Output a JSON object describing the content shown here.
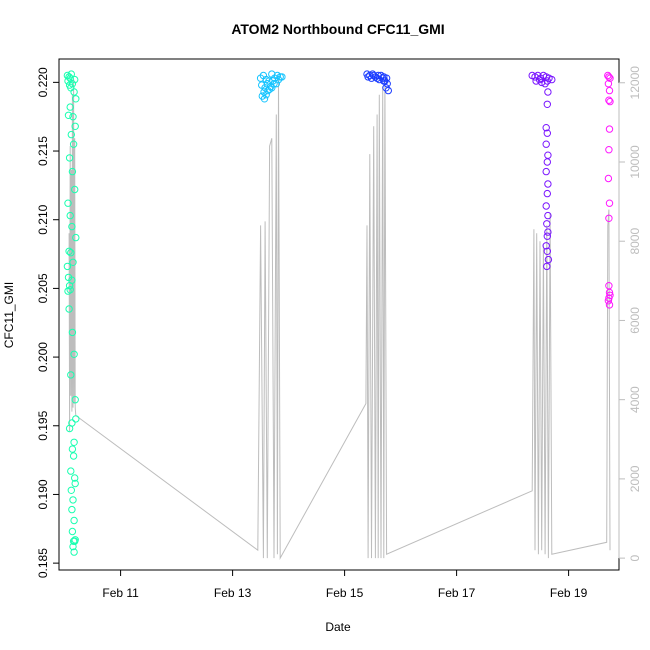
{
  "chart_data": {
    "type": "scatter",
    "title": "ATOM2 Northbound CFC11_GMI",
    "xlabel": "Date",
    "ylabel": "CFC11_GMI",
    "x_ticks": [
      "Feb 11",
      "Feb 13",
      "Feb 15",
      "Feb 17",
      "Feb 19"
    ],
    "x_tick_days": [
      11,
      13,
      15,
      17,
      19
    ],
    "xlim": [
      9.9,
      19.9
    ],
    "ylim": [
      0.1845,
      0.2217
    ],
    "y_ticks": [
      0.185,
      0.19,
      0.195,
      0.2,
      0.205,
      0.21,
      0.215,
      0.22
    ],
    "y_tick_labels": [
      "0.185",
      "0.190",
      "0.195",
      "0.200",
      "0.205",
      "0.210",
      "0.215",
      "0.220"
    ],
    "y2_ticks": [
      0,
      2000,
      4000,
      6000,
      8000,
      10000,
      12000
    ],
    "y2lim": [
      -300,
      12600
    ],
    "y2_color": "#bdbdbd",
    "grid": false,
    "series": [
      {
        "color": "#19ffb0",
        "points": [
          [
            10.05,
            0.2205
          ],
          [
            10.08,
            0.2204
          ],
          [
            10.1,
            0.2203
          ],
          [
            10.12,
            0.2206
          ],
          [
            10.06,
            0.2201
          ],
          [
            10.09,
            0.2198
          ],
          [
            10.14,
            0.2199
          ],
          [
            10.18,
            0.2202
          ],
          [
            10.11,
            0.2196
          ],
          [
            10.17,
            0.2193
          ],
          [
            10.2,
            0.2188
          ],
          [
            10.1,
            0.2182
          ],
          [
            10.15,
            0.2175
          ],
          [
            10.19,
            0.2168
          ],
          [
            10.07,
            0.2176
          ],
          [
            10.12,
            0.2162
          ],
          [
            10.16,
            0.2155
          ],
          [
            10.09,
            0.2145
          ],
          [
            10.14,
            0.2135
          ],
          [
            10.18,
            0.2122
          ],
          [
            10.06,
            0.2112
          ],
          [
            10.1,
            0.2103
          ],
          [
            10.13,
            0.2095
          ],
          [
            10.2,
            0.2087
          ],
          [
            10.08,
            0.2077
          ],
          [
            10.11,
            0.2076
          ],
          [
            10.05,
            0.2066
          ],
          [
            10.07,
            0.2058
          ],
          [
            10.09,
            0.2052
          ],
          [
            10.06,
            0.2048
          ],
          [
            10.1,
            0.2049
          ],
          [
            10.13,
            0.2056
          ],
          [
            10.15,
            0.2069
          ],
          [
            10.08,
            0.2035
          ],
          [
            10.14,
            0.2018
          ],
          [
            10.17,
            0.2002
          ],
          [
            10.11,
            0.1987
          ],
          [
            10.19,
            0.1969
          ],
          [
            10.13,
            0.1952
          ],
          [
            10.17,
            0.1938
          ],
          [
            10.2,
            0.1955
          ],
          [
            10.09,
            0.1948
          ],
          [
            10.14,
            0.1933
          ],
          [
            10.16,
            0.1928
          ],
          [
            10.11,
            0.1917
          ],
          [
            10.18,
            0.1912
          ],
          [
            10.12,
            0.1903
          ],
          [
            10.15,
            0.1896
          ],
          [
            10.19,
            0.1908
          ],
          [
            10.13,
            0.1889
          ],
          [
            10.17,
            0.1881
          ],
          [
            10.14,
            0.1873
          ],
          [
            10.16,
            0.1866
          ],
          [
            10.15,
            0.1862
          ],
          [
            10.18,
            0.1866
          ],
          [
            10.17,
            0.1858
          ],
          [
            10.19,
            0.1867
          ]
        ]
      },
      {
        "color": "#16c4ff",
        "points": [
          [
            13.5,
            0.2203
          ],
          [
            13.55,
            0.2205
          ],
          [
            13.6,
            0.2202
          ],
          [
            13.65,
            0.2201
          ],
          [
            13.7,
            0.2206
          ],
          [
            13.75,
            0.2203
          ],
          [
            13.8,
            0.2205
          ],
          [
            13.85,
            0.2204
          ],
          [
            13.52,
            0.2198
          ],
          [
            13.58,
            0.2196
          ],
          [
            13.62,
            0.2199
          ],
          [
            13.68,
            0.2197
          ],
          [
            13.72,
            0.2201
          ],
          [
            13.78,
            0.2199
          ],
          [
            13.56,
            0.2193
          ],
          [
            13.6,
            0.2191
          ],
          [
            13.63,
            0.2194
          ],
          [
            13.66,
            0.2195
          ],
          [
            13.7,
            0.2196
          ],
          [
            13.74,
            0.2199
          ],
          [
            13.53,
            0.219
          ],
          [
            13.57,
            0.2188
          ],
          [
            13.82,
            0.2202
          ],
          [
            13.88,
            0.2204
          ]
        ]
      },
      {
        "color": "#1a3cff",
        "points": [
          [
            15.4,
            0.2206
          ],
          [
            15.45,
            0.2205
          ],
          [
            15.5,
            0.2206
          ],
          [
            15.55,
            0.2204
          ],
          [
            15.6,
            0.2205
          ],
          [
            15.65,
            0.2205
          ],
          [
            15.7,
            0.2204
          ],
          [
            15.75,
            0.2203
          ],
          [
            15.42,
            0.2204
          ],
          [
            15.48,
            0.2203
          ],
          [
            15.52,
            0.2205
          ],
          [
            15.58,
            0.2203
          ],
          [
            15.62,
            0.2202
          ],
          [
            15.68,
            0.2203
          ],
          [
            15.72,
            0.2201
          ],
          [
            15.76,
            0.2199
          ],
          [
            15.74,
            0.2196
          ],
          [
            15.7,
            0.2201
          ],
          [
            15.78,
            0.2194
          ]
        ]
      },
      {
        "color": "#7a16ff",
        "points": [
          [
            18.35,
            0.2205
          ],
          [
            18.4,
            0.2204
          ],
          [
            18.45,
            0.2205
          ],
          [
            18.5,
            0.2203
          ],
          [
            18.55,
            0.2205
          ],
          [
            18.6,
            0.2204
          ],
          [
            18.65,
            0.2203
          ],
          [
            18.7,
            0.2202
          ],
          [
            18.42,
            0.2201
          ],
          [
            18.48,
            0.2202
          ],
          [
            18.52,
            0.22
          ],
          [
            18.58,
            0.2199
          ],
          [
            18.62,
            0.2201
          ],
          [
            18.63,
            0.2193
          ],
          [
            18.62,
            0.2184
          ],
          [
            18.6,
            0.2167
          ],
          [
            18.62,
            0.2163
          ],
          [
            18.6,
            0.2155
          ],
          [
            18.63,
            0.2147
          ],
          [
            18.62,
            0.2142
          ],
          [
            18.6,
            0.2135
          ],
          [
            18.63,
            0.2126
          ],
          [
            18.62,
            0.2119
          ],
          [
            18.6,
            0.211
          ],
          [
            18.63,
            0.2103
          ],
          [
            18.61,
            0.2097
          ],
          [
            18.63,
            0.2091
          ],
          [
            18.62,
            0.2088
          ],
          [
            18.6,
            0.2081
          ],
          [
            18.62,
            0.2077
          ],
          [
            18.64,
            0.2071
          ],
          [
            18.61,
            0.2066
          ]
        ]
      },
      {
        "color": "#ff16ff",
        "points": [
          [
            19.7,
            0.2205
          ],
          [
            19.72,
            0.2204
          ],
          [
            19.74,
            0.2203
          ],
          [
            19.71,
            0.2199
          ],
          [
            19.73,
            0.2194
          ],
          [
            19.72,
            0.2187
          ],
          [
            19.74,
            0.2186
          ],
          [
            19.73,
            0.2166
          ],
          [
            19.72,
            0.2151
          ],
          [
            19.71,
            0.213
          ],
          [
            19.73,
            0.2112
          ],
          [
            19.72,
            0.2101
          ],
          [
            19.72,
            0.2052
          ],
          [
            19.73,
            0.2047
          ],
          [
            19.74,
            0.2045
          ],
          [
            19.72,
            0.2043
          ],
          [
            19.71,
            0.2041
          ],
          [
            19.73,
            0.2038
          ]
        ]
      }
    ],
    "line": {
      "color": "#bdbdbd",
      "axis": "right",
      "points": [
        [
          10.08,
          8200
        ],
        [
          10.09,
          3200
        ],
        [
          10.1,
          10400
        ],
        [
          10.11,
          4100
        ],
        [
          10.12,
          9800
        ],
        [
          10.13,
          3700
        ],
        [
          10.14,
          11700
        ],
        [
          10.15,
          3800
        ],
        [
          10.16,
          12100
        ],
        [
          10.17,
          3900
        ],
        [
          10.18,
          10600
        ],
        [
          10.19,
          3800
        ],
        [
          10.2,
          3600
        ],
        [
          13.45,
          200
        ],
        [
          13.5,
          8400
        ],
        [
          13.55,
          0
        ],
        [
          13.58,
          8500
        ],
        [
          13.62,
          0
        ],
        [
          13.66,
          10400
        ],
        [
          13.7,
          10600
        ],
        [
          13.74,
          0
        ],
        [
          13.78,
          11200
        ],
        [
          13.8,
          100
        ],
        [
          13.82,
          12100
        ],
        [
          13.85,
          0
        ],
        [
          15.38,
          3900
        ],
        [
          15.4,
          8400
        ],
        [
          15.42,
          0
        ],
        [
          15.45,
          10200
        ],
        [
          15.48,
          0
        ],
        [
          15.52,
          10900
        ],
        [
          15.55,
          0
        ],
        [
          15.58,
          11200
        ],
        [
          15.6,
          0
        ],
        [
          15.62,
          11700
        ],
        [
          15.65,
          0
        ],
        [
          15.68,
          11900
        ],
        [
          15.7,
          0
        ],
        [
          15.72,
          12100
        ],
        [
          15.75,
          100
        ],
        [
          18.35,
          1700
        ],
        [
          18.38,
          8300
        ],
        [
          18.4,
          200
        ],
        [
          18.43,
          8200
        ],
        [
          18.46,
          100
        ],
        [
          18.49,
          8000
        ],
        [
          18.52,
          200
        ],
        [
          18.55,
          7900
        ],
        [
          18.58,
          100
        ],
        [
          18.61,
          8400
        ],
        [
          18.64,
          0
        ],
        [
          18.67,
          8700
        ],
        [
          18.7,
          100
        ],
        [
          19.68,
          400
        ],
        [
          19.7,
          8400
        ],
        [
          19.72,
          8800
        ],
        [
          19.74,
          200
        ]
      ]
    }
  }
}
